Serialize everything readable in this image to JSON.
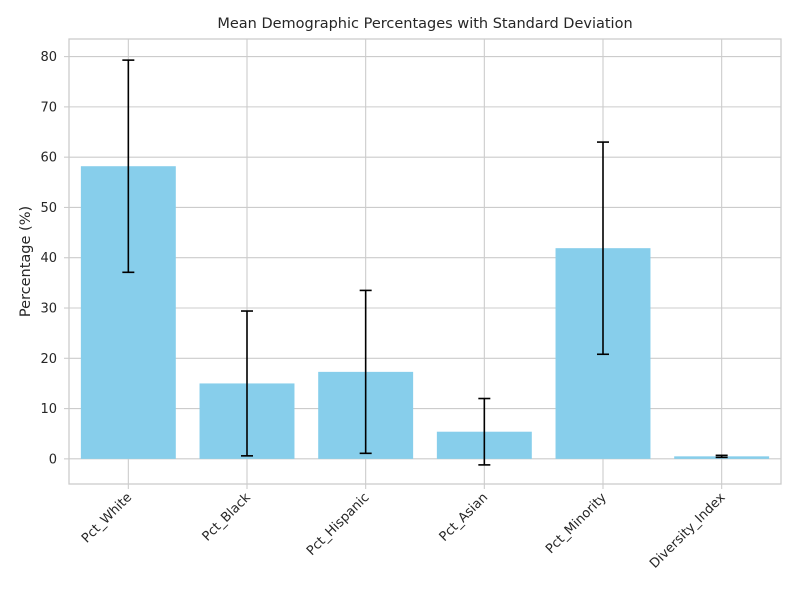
{
  "chart_data": {
    "type": "bar",
    "title": "Mean Demographic Percentages with Standard Deviation",
    "xlabel": "",
    "ylabel": "Percentage (%)",
    "categories": [
      "Pct_White",
      "Pct_Black",
      "Pct_Hispanic",
      "Pct_Asian",
      "Pct_Minority",
      "Diversity_Index"
    ],
    "values": [
      58.2,
      15.0,
      17.3,
      5.4,
      41.9,
      0.5
    ],
    "error": [
      21.1,
      14.4,
      16.2,
      6.6,
      21.1,
      0.2
    ],
    "ylim": [
      -5,
      83.5
    ],
    "yticks": [
      0,
      10,
      20,
      30,
      40,
      50,
      60,
      70,
      80
    ],
    "grid": true,
    "bar_color": "#87CEEB",
    "error_color": "#000000",
    "xtick_rotation": 45
  }
}
